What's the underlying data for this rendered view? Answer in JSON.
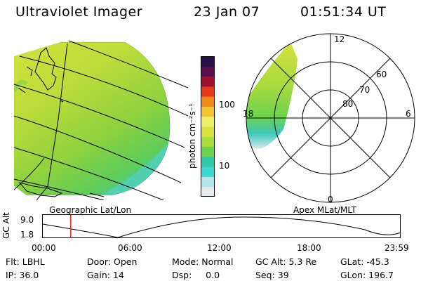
{
  "header": {
    "title": "Ultraviolet Imager",
    "date": "23 Jan 07",
    "time": "01:51:34 UT"
  },
  "colorbar": {
    "unit_label": "photon cm⁻²s⁻¹",
    "tick_100": "100",
    "tick_10": "10",
    "colors": [
      "#e8ecee",
      "#b0e6ec",
      "#3dd8d0",
      "#33c8a6",
      "#6ed250",
      "#a6dc3c",
      "#d8e23e",
      "#eef06a",
      "#f4c430",
      "#ef8a1a",
      "#e63a1e",
      "#a01030",
      "#5a1050",
      "#2a1048"
    ]
  },
  "map_left": {
    "label": "Geographic Lat/Lon"
  },
  "map_right": {
    "label": "Apex MLat/MLT",
    "mlt_12": "12",
    "mlt_18": "18",
    "mlt_6": "6",
    "mlt_0": "0",
    "lat_60": "60",
    "lat_70": "70",
    "lat_80": "80"
  },
  "altitude_plot": {
    "ylabel": "GC Alt",
    "y_max": "9.0",
    "y_min": "1.8",
    "x_ticks": [
      "00:00",
      "06:00",
      "12:00",
      "18:00",
      "23:59"
    ],
    "current_time_fraction": 0.078
  },
  "info": {
    "flt": "Flt: LBHL",
    "ip": "IP: 36.0",
    "door": "Door: Open",
    "gain": "Gain: 14",
    "mode": "Mode: Normal",
    "dsp": "Dsp:     0.0",
    "gc_alt": "GC Alt: 5.3 Re",
    "seq": "Seq: 39",
    "glat": "GLat: -45.3",
    "glon": "GLon: 196.7"
  }
}
